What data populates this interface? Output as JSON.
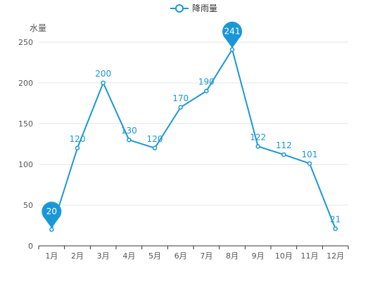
{
  "chart_data": {
    "type": "line",
    "categories": [
      "1月",
      "2月",
      "3月",
      "4月",
      "5月",
      "6月",
      "7月",
      "8月",
      "9月",
      "10月",
      "11月",
      "12月"
    ],
    "series": [
      {
        "name": "降雨量",
        "values": [
          20,
          120,
          200,
          130,
          120,
          170,
          190,
          241,
          122,
          112,
          101,
          21
        ],
        "color": "#1a97d6"
      }
    ],
    "ylabel": "水量",
    "ylim": [
      0,
      250
    ],
    "yticks": [
      0,
      50,
      100,
      150,
      200,
      250
    ],
    "grid": true,
    "legend": "top-center",
    "markers": {
      "max": 241,
      "min": 20
    }
  }
}
